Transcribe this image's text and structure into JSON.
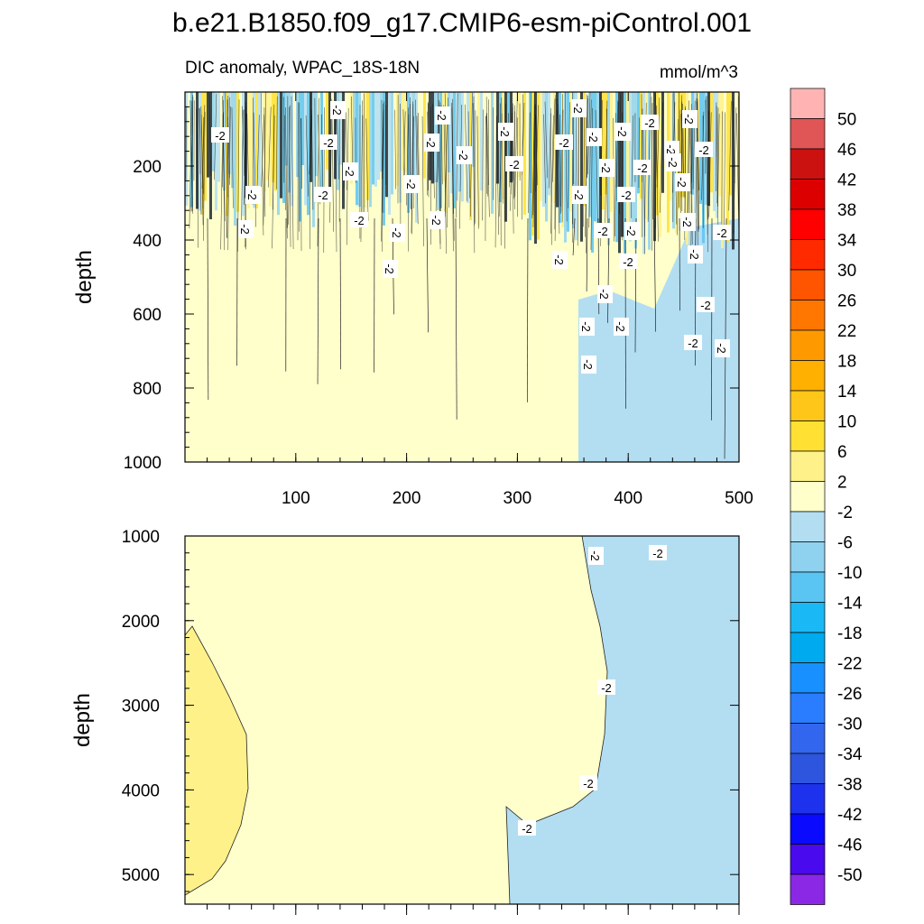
{
  "title": "b.e21.B1850.f09_g17.CMIP6-esm-piControl.001",
  "chart_data": [
    {
      "type": "contour",
      "subtitle_left": "DIC anomaly, WPAC_18S-18N",
      "subtitle_right": "mmol/m^3",
      "xlabel": "",
      "ylabel": "depth",
      "xlim": [
        0,
        500
      ],
      "ylim": [
        1000,
        0
      ],
      "x_ticks": [
        100,
        200,
        300,
        400,
        500
      ],
      "y_ticks": [
        200,
        400,
        600,
        800,
        1000
      ],
      "contour_labels": [
        "-2",
        "-2",
        "-2",
        "-2",
        "-2",
        "-2",
        "-2",
        "-2",
        "-2",
        "-2",
        "-2",
        "-2",
        "-2",
        "-2",
        "-2",
        "-2",
        "-2",
        "-2",
        "-2",
        "-2",
        "-2",
        "-2",
        "-2",
        "-2",
        "-2",
        "-2",
        "-2",
        "-2",
        "-2",
        "-2",
        "-2",
        "-2",
        "-2",
        "-2",
        "-2",
        "-2",
        "-2",
        "-2",
        "-2",
        "-2",
        "-2",
        "-2",
        "-2",
        "-2",
        "-2"
      ]
    },
    {
      "type": "contour",
      "xlabel": "",
      "ylabel": "depth",
      "xlim": [
        0,
        500
      ],
      "ylim": [
        5350,
        1000
      ],
      "y_ticks": [
        1000,
        2000,
        3000,
        4000,
        5000
      ],
      "contour_labels": [
        "-2",
        "-2",
        "-2",
        "-2",
        "-2"
      ]
    }
  ],
  "colorbar": {
    "levels": [
      "50",
      "46",
      "42",
      "38",
      "34",
      "30",
      "26",
      "22",
      "18",
      "14",
      "10",
      "6",
      "2",
      "-2",
      "-6",
      "-10",
      "-14",
      "-18",
      "-22",
      "-26",
      "-30",
      "-34",
      "-38",
      "-42",
      "-46",
      "-50"
    ],
    "colors": [
      "#ffb3b3",
      "#e05555",
      "#cc1111",
      "#dd0000",
      "#ff0000",
      "#ff2a00",
      "#ff5500",
      "#ff7700",
      "#ff9900",
      "#ffb000",
      "#ffc61a",
      "#ffe033",
      "#fff18a",
      "#ffffcc",
      "#b3def2",
      "#8fd2ef",
      "#5ac4f2",
      "#1ab9f5",
      "#00aaee",
      "#1890ff",
      "#2a7dff",
      "#3366ee",
      "#2e55dd",
      "#1e32ee",
      "#0a0aff",
      "#4a0aee",
      "#8a28e6"
    ]
  }
}
